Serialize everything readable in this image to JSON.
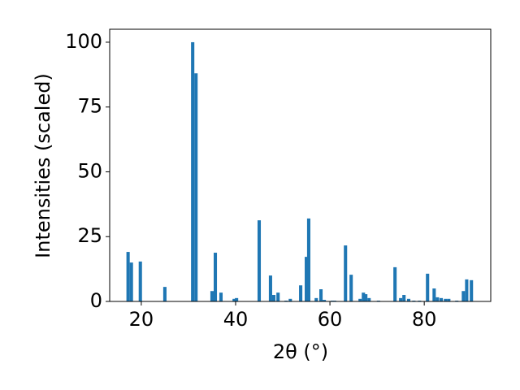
{
  "chart_data": {
    "type": "bar",
    "xlabel": "2θ (°)",
    "ylabel": "Intensities (scaled)",
    "color": "#1f77b4",
    "bar_width": 0.7,
    "x": [
      17.2,
      17.9,
      19.8,
      25.0,
      30.9,
      31.6,
      35.0,
      35.7,
      36.9,
      39.7,
      40.2,
      45.0,
      47.4,
      48.1,
      49.0,
      50.7,
      51.6,
      53.8,
      55.0,
      55.5,
      57.1,
      58.1,
      58.8,
      60.5,
      61.0,
      63.3,
      64.5,
      66.4,
      67.1,
      67.6,
      68.3,
      70.3,
      73.8,
      75.0,
      75.7,
      76.7,
      77.8,
      79.0,
      80.7,
      82.1,
      82.8,
      83.6,
      84.5,
      85.2,
      86.9,
      88.3,
      89.0,
      90.0
    ],
    "values": [
      19.1,
      15,
      15.4,
      5.6,
      100,
      88,
      4,
      18.8,
      3.4,
      1,
      1.3,
      31.3,
      10,
      2.5,
      3.4,
      0.3,
      1,
      6.2,
      17.2,
      32,
      1.3,
      4.7,
      0.6,
      0.3,
      0.3,
      21.6,
      10.3,
      1,
      3.4,
      2.8,
      1.3,
      0.3,
      13.2,
      1.3,
      2.5,
      1,
      0.3,
      0.3,
      10.7,
      5,
      1.6,
      1.3,
      1,
      1,
      0.3,
      4,
      8.5,
      8.2
    ],
    "xlim": [
      13.3,
      94.1
    ],
    "ylim": [
      0,
      105
    ],
    "xticks": [
      20,
      40,
      60,
      80
    ],
    "yticks": [
      0,
      25,
      50,
      75,
      100
    ]
  }
}
